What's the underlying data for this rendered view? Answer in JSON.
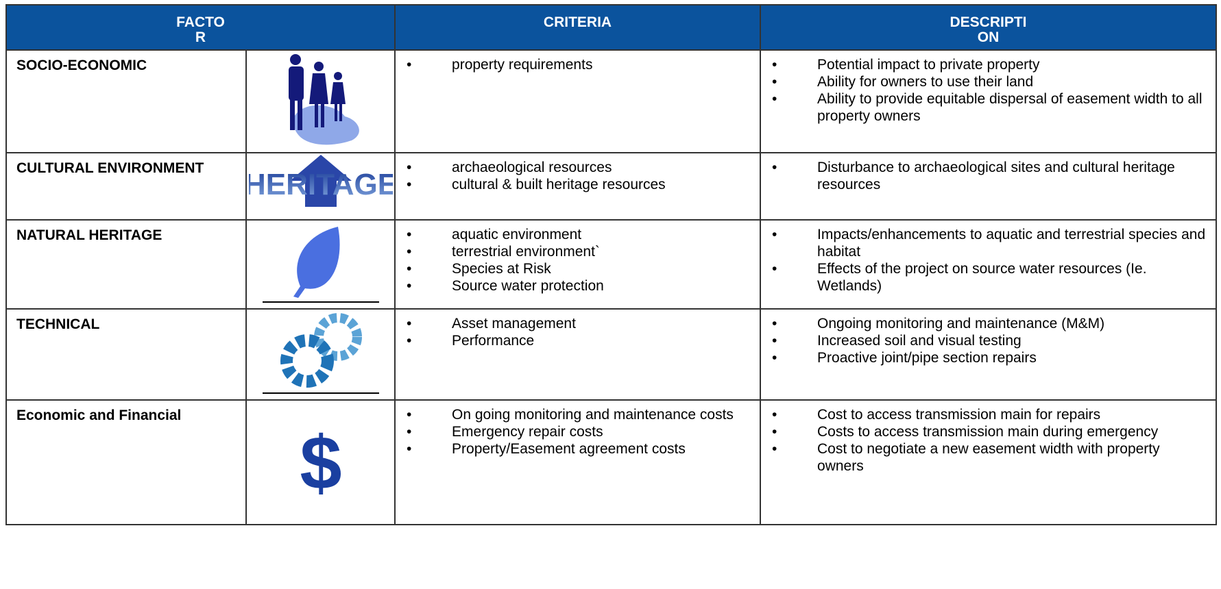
{
  "header": {
    "columns": [
      "FACTO\nR",
      "CRITERIA",
      "DESCRIPTI\nON"
    ]
  },
  "rows": [
    {
      "factor": "SOCIO-ECONOMIC",
      "criteria": [
        "property requirements"
      ],
      "description": [
        "Potential impact to private property",
        "Ability for owners to use their land",
        "Ability to provide equitable dispersal of easement width to all property owners"
      ]
    },
    {
      "factor": "CULTURAL  ENVIRONMENT",
      "icon_text": "HERITAGE",
      "criteria": [
        "archaeological resources",
        "cultural & built heritage resources"
      ],
      "description": [
        "Disturbance to archaeological sites and cultural heritage resources"
      ]
    },
    {
      "factor": "NATURAL HERITAGE",
      "criteria": [
        "aquatic environment",
        "terrestrial environment`",
        "Species at Risk",
        "Source water protection"
      ],
      "description": [
        "Impacts/enhancements to aquatic and terrestrial species and habitat",
        "Effects of the project on source water resources (Ie. Wetlands)"
      ]
    },
    {
      "factor": "TECHNICAL",
      "criteria": [
        "Asset management",
        "Performance"
      ],
      "description": [
        "Ongoing monitoring and maintenance (M&M)",
        "Increased soil and visual testing",
        "Proactive joint/pipe section repairs"
      ]
    },
    {
      "factor": "Economic and Financial",
      "icon_text": "$",
      "criteria": [
        "On going monitoring and maintenance costs",
        "Emergency repair costs",
        "Property/Easement agreement costs"
      ],
      "description": [
        "Cost to access transmission main for repairs",
        "Costs to access transmission main during emergency",
        "Cost to negotiate a new easement width with property owners"
      ]
    }
  ]
}
